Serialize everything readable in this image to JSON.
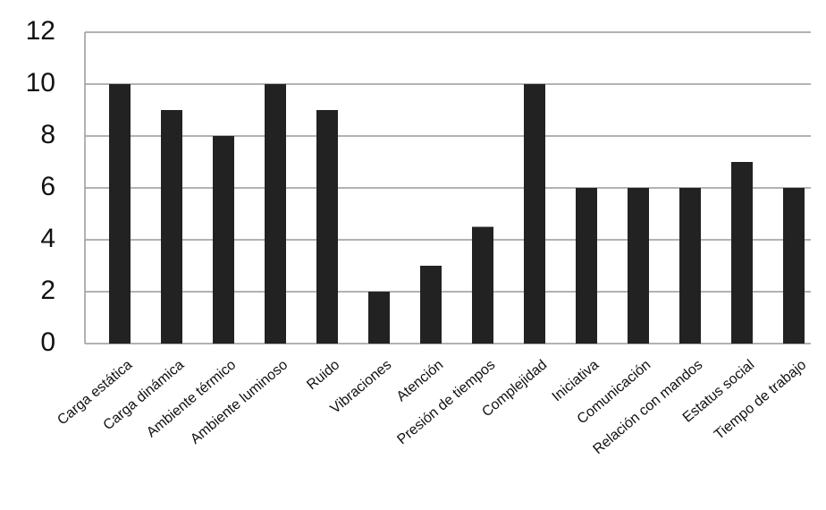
{
  "chart_data": {
    "type": "bar",
    "categories": [
      "Carga estática",
      "Carga dinámica",
      "Ambiente térmico",
      "Ambiente luminoso",
      "Ruido",
      "Vibraciones",
      "Atención",
      "Presión de tiempos",
      "Complejidad",
      "Iniciativa",
      "Comunicación",
      "Relación con mandos",
      "Estatus social",
      "Tiempo de trabajo"
    ],
    "values": [
      10,
      9,
      8,
      10,
      9,
      2,
      3,
      4.5,
      10,
      6,
      6,
      6,
      7,
      6
    ],
    "color": "#222222",
    "ylim": [
      0,
      12
    ],
    "yticks": [
      0,
      2,
      4,
      6,
      8,
      10,
      12
    ],
    "grid": true
  }
}
